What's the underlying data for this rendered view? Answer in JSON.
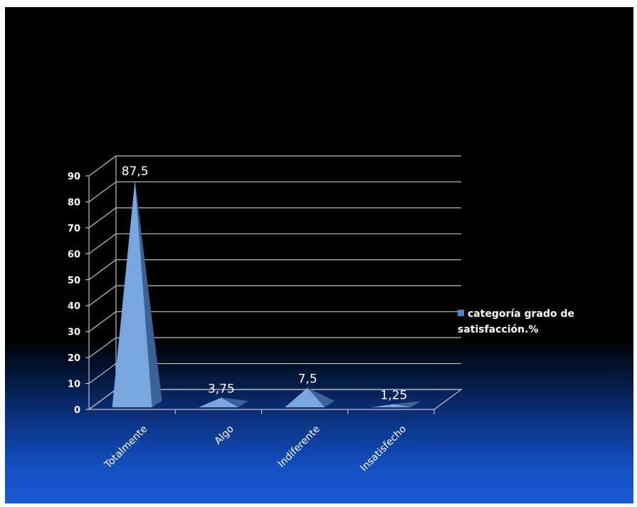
{
  "chart_data": {
    "type": "bar",
    "style": "3d-pyramid",
    "categories": [
      "Totalmente",
      "Algo",
      "Indiferente",
      "Insatisfecho"
    ],
    "series": [
      {
        "name": "categoría grado de satisfacción.%",
        "values": [
          87.5,
          3.75,
          7.5,
          1.25
        ]
      }
    ],
    "data_labels": [
      "87,5",
      "3,75",
      "7,5",
      "1,25"
    ],
    "y_ticks": [
      "0",
      "10",
      "20",
      "30",
      "40",
      "50",
      "60",
      "70",
      "80",
      "90"
    ],
    "ylim": [
      0,
      90
    ],
    "grid": true,
    "legend_position": "right",
    "colors": {
      "series": "#4f81bd",
      "series_light": "#7aa6e0",
      "series_dark": "#3a6296",
      "grid": "#bfbfbf",
      "text": "#ffffff"
    }
  },
  "legend": {
    "label": "categoría grado de satisfacción.%"
  }
}
